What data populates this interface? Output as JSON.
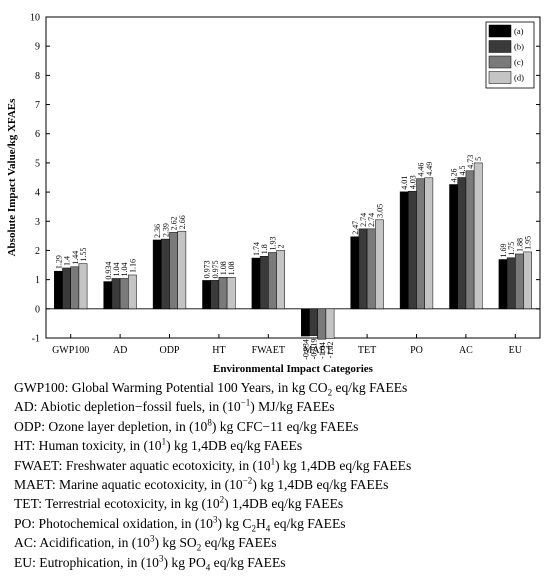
{
  "chart_data": {
    "type": "bar",
    "xlabel": "Environmental Impact Categories",
    "ylabel": "Absolute Impact Value/kg XFAEs",
    "ylim": [
      -1,
      10
    ],
    "yticks": [
      -1,
      0,
      1,
      2,
      3,
      4,
      5,
      6,
      7,
      8,
      9,
      10
    ],
    "legend_position": "top-right",
    "categories": [
      "GWP100",
      "AD",
      "ODP",
      "HT",
      "FWAET",
      "MAET",
      "TET",
      "PO",
      "AC",
      "EU"
    ],
    "series": [
      {
        "name": "(a)",
        "color": "#000000",
        "values": [
          1.29,
          0.934,
          2.36,
          0.973,
          1.74,
          -0.934,
          2.47,
          4.01,
          4.26,
          1.69
        ],
        "labels": [
          "1.29",
          "0.934",
          "2.36",
          "0.973",
          "1.74",
          "-0.934",
          "2.47",
          "4.01",
          "4.26",
          "1.69"
        ]
      },
      {
        "name": "(b)",
        "color": "#3a3a3a",
        "values": [
          1.4,
          1.04,
          2.39,
          0.975,
          1.8,
          -0.919,
          2.74,
          4.03,
          4.5,
          1.75
        ],
        "labels": [
          "1.4",
          "1.04",
          "2.39",
          "0.975",
          "1.8",
          "-0.919",
          "2.74",
          "4.03",
          "4.5",
          "1.75"
        ]
      },
      {
        "name": "(c)",
        "color": "#7a7a7a",
        "values": [
          1.44,
          1.04,
          2.62,
          1.08,
          1.93,
          -1.04,
          2.74,
          4.46,
          4.73,
          1.88
        ],
        "labels": [
          "1.44",
          "1.04",
          "2.62",
          "1.08",
          "1.93",
          "-1.04",
          "2.74",
          "4.46",
          "4.73",
          "1.88"
        ]
      },
      {
        "name": "(d)",
        "color": "#c4c4c4",
        "values": [
          1.55,
          1.16,
          2.66,
          1.08,
          2,
          -1.02,
          3.05,
          4.49,
          5,
          1.95
        ],
        "labels": [
          "1.55",
          "1.16",
          "2.66",
          "1.08",
          "2",
          "-1.02",
          "3.05",
          "4.49",
          "5",
          "1.95"
        ]
      }
    ]
  },
  "notes": [
    {
      "abbr": "GWP100:",
      "parts": [
        {
          "t": " Global Warming Potential 100 Years, in kg CO"
        },
        {
          "sub": "2"
        },
        {
          "t": " eq/kg FAEEs"
        }
      ]
    },
    {
      "abbr": "AD:",
      "parts": [
        {
          "t": " Abiotic depletion−fossil fuels, in (10"
        },
        {
          "sup": "−1"
        },
        {
          "t": ") MJ/kg FAEEs"
        }
      ]
    },
    {
      "abbr": "ODP:",
      "parts": [
        {
          "t": " Ozone layer depletion, in (10"
        },
        {
          "sup": "8"
        },
        {
          "t": ") kg CFC−11 eq/kg FAEEs"
        }
      ]
    },
    {
      "abbr": "HT:",
      "parts": [
        {
          "t": " Human toxicity, in (10"
        },
        {
          "sup": "1"
        },
        {
          "t": ") kg 1,4DB eq/kg FAEEs"
        }
      ]
    },
    {
      "abbr": "FWAET:",
      "parts": [
        {
          "t": " Freshwater aquatic ecotoxicity, in (10"
        },
        {
          "sup": "1"
        },
        {
          "t": ") kg 1,4DB eq/kg FAEEs"
        }
      ]
    },
    {
      "abbr": "MAET:",
      "parts": [
        {
          "t": " Marine aquatic ecotoxicity, in (10"
        },
        {
          "sup": "−2"
        },
        {
          "t": ") kg 1,4DB eq/kg FAEEs"
        }
      ]
    },
    {
      "abbr": "TET:",
      "parts": [
        {
          "t": " Terrestrial ecotoxicity, in kg (10"
        },
        {
          "sup": "2"
        },
        {
          "t": ") 1,4DB eq/kg FAEEs"
        }
      ]
    },
    {
      "abbr": "PO:",
      "parts": [
        {
          "t": " Photochemical oxidation, in (10"
        },
        {
          "sup": "3"
        },
        {
          "t": ") kg C"
        },
        {
          "sub": "2"
        },
        {
          "t": "H"
        },
        {
          "sub": "4"
        },
        {
          "t": " eq/kg FAEEs"
        }
      ]
    },
    {
      "abbr": "AC:",
      "parts": [
        {
          "t": " Acidification, in (10"
        },
        {
          "sup": "3"
        },
        {
          "t": ") kg SO"
        },
        {
          "sub": "2"
        },
        {
          "t": " eq/kg FAEEs"
        }
      ]
    },
    {
      "abbr": "EU:",
      "parts": [
        {
          "t": " Eutrophication, in (10"
        },
        {
          "sup": "3"
        },
        {
          "t": ") kg PO"
        },
        {
          "sub": "4"
        },
        {
          "t": " eq/kg FAEEs"
        }
      ]
    }
  ]
}
